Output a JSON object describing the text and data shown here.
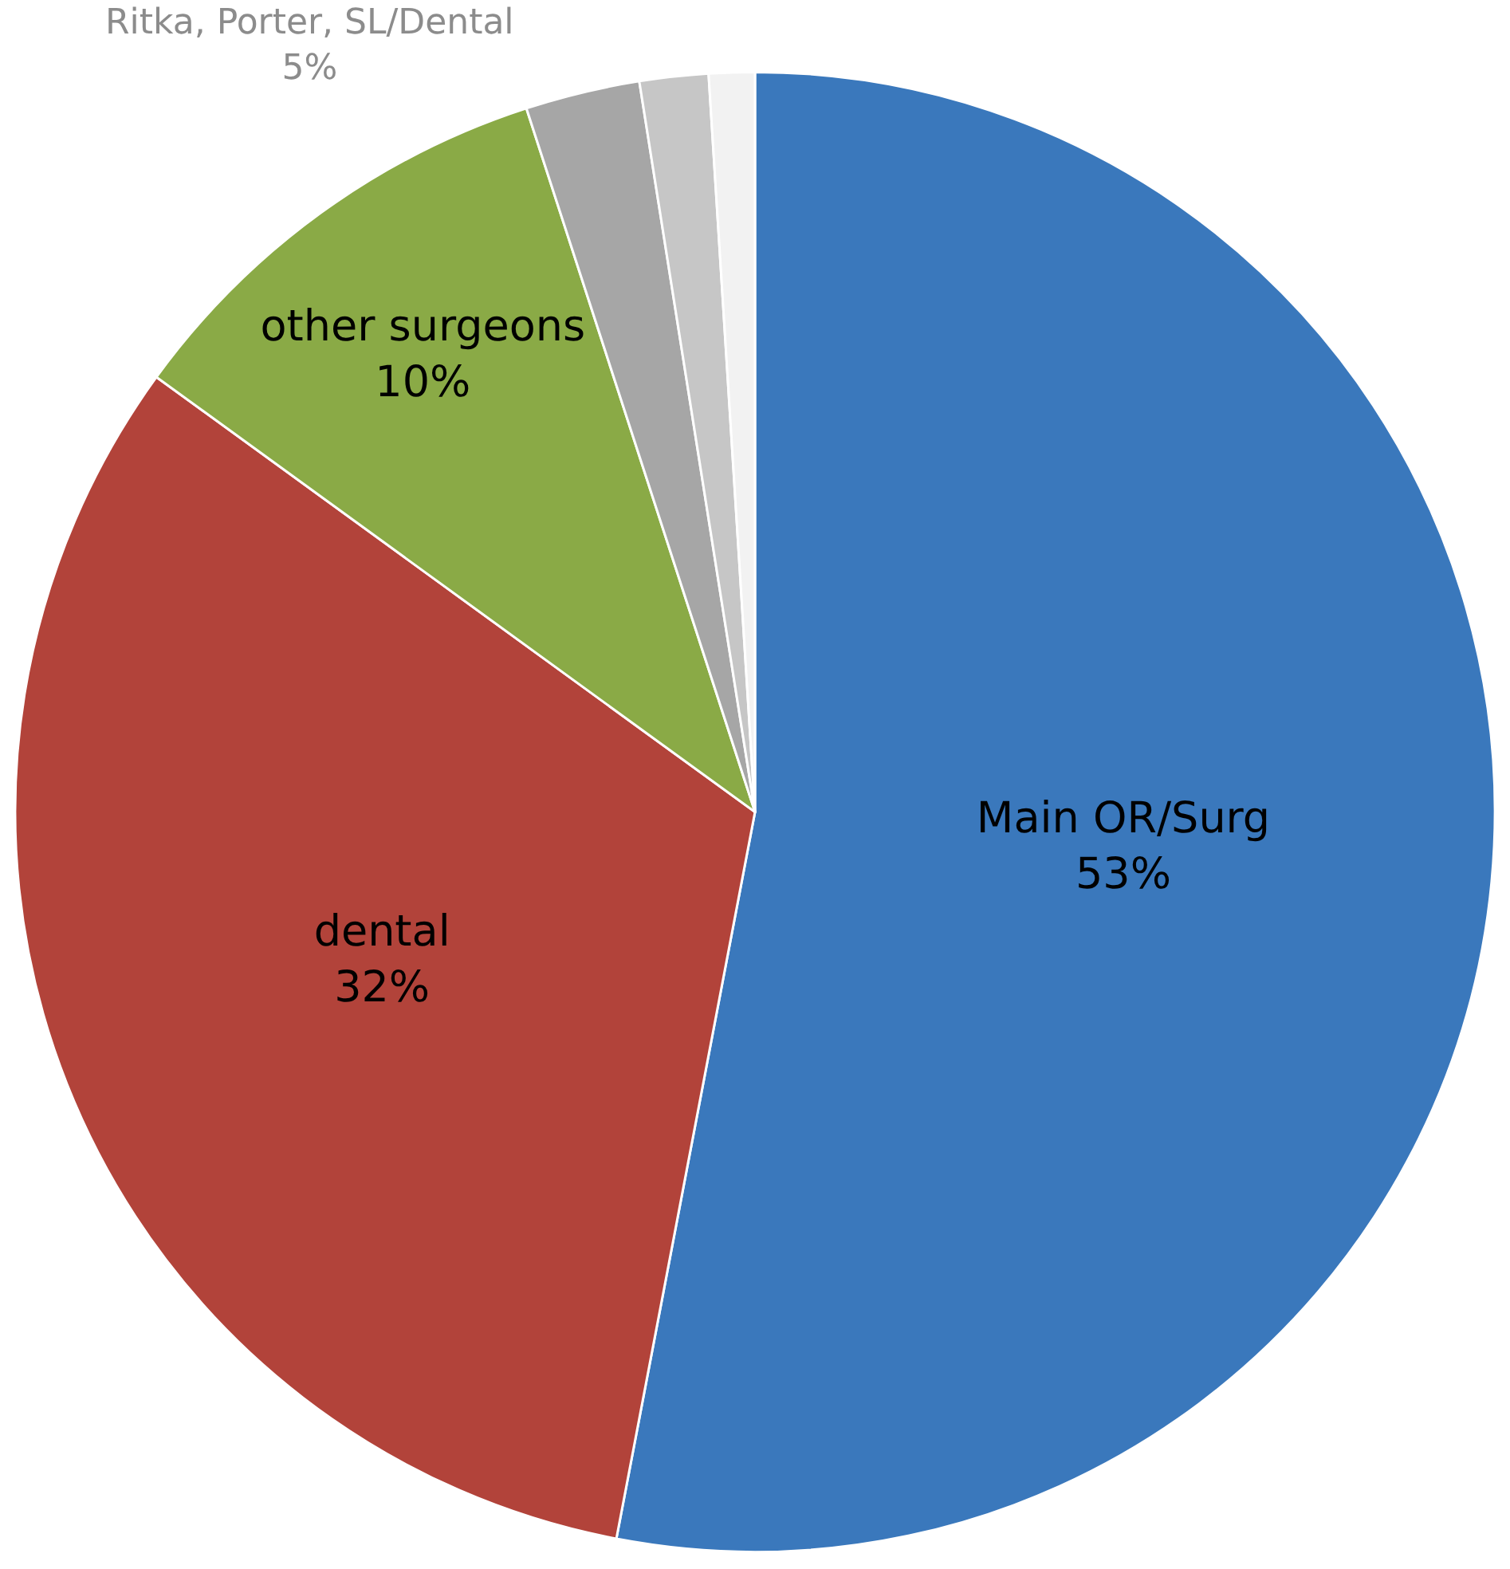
{
  "chart_data": {
    "type": "pie",
    "categories": [
      "Main OR/Surg",
      "dental",
      "other surgeons",
      null,
      null,
      null
    ],
    "values": [
      53,
      32,
      10,
      2.5,
      1.5,
      1
    ],
    "value_labels": [
      "53%",
      "32%",
      "10%",
      null,
      null,
      null
    ],
    "colors": [
      "#3a78bc",
      "#b2433a",
      "#8aaa46",
      "#a6a6a6",
      "#c6c6c6",
      "#f2f2f2"
    ],
    "annotations": [
      "Ritka, Porter, SL/Dental\n5%"
    ],
    "legend": false
  }
}
